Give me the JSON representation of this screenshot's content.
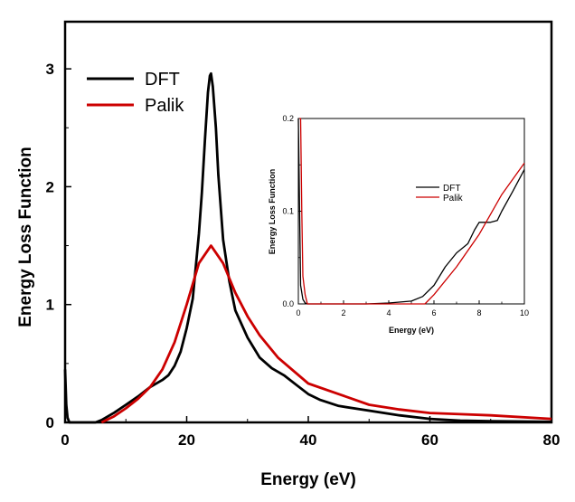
{
  "chart_data": [
    {
      "type": "line",
      "title": "",
      "xlabel": "Energy (eV)",
      "ylabel": "Energy Loss Function",
      "xlim": [
        0,
        80
      ],
      "ylim": [
        0,
        3.4
      ],
      "xticks": [
        0,
        20,
        40,
        60,
        80
      ],
      "yticks": [
        0,
        1,
        2,
        3
      ],
      "legend_position": "top-left",
      "series": [
        {
          "name": "DFT",
          "color": "#000000",
          "x": [
            0,
            0.2,
            0.4,
            0.7,
            1,
            5,
            6,
            8,
            10,
            12,
            14,
            16,
            17,
            18,
            19,
            20,
            21,
            22,
            22.5,
            23,
            23.5,
            23.8,
            24,
            24.3,
            24.8,
            25.2,
            26,
            27,
            28,
            30,
            32,
            34,
            36,
            38,
            40,
            42,
            45,
            50,
            55,
            60,
            65,
            70,
            80
          ],
          "y": [
            0.45,
            0.15,
            0.04,
            0.0,
            0.0,
            0.0,
            0.02,
            0.08,
            0.15,
            0.22,
            0.3,
            0.36,
            0.4,
            0.48,
            0.6,
            0.8,
            1.05,
            1.6,
            1.95,
            2.4,
            2.8,
            2.94,
            2.96,
            2.85,
            2.5,
            2.1,
            1.55,
            1.2,
            0.95,
            0.72,
            0.55,
            0.46,
            0.4,
            0.32,
            0.24,
            0.19,
            0.14,
            0.1,
            0.06,
            0.03,
            0.015,
            0.01,
            0.005
          ]
        },
        {
          "name": "Palik",
          "color": "#cc0000",
          "x": [
            6,
            8,
            10,
            12,
            14,
            16,
            18,
            20,
            22,
            24,
            26,
            28,
            30,
            32,
            35,
            40,
            45,
            50,
            55,
            60,
            65,
            70,
            80
          ],
          "y": [
            0.0,
            0.05,
            0.12,
            0.2,
            0.3,
            0.45,
            0.68,
            1.0,
            1.35,
            1.5,
            1.35,
            1.1,
            0.9,
            0.74,
            0.55,
            0.33,
            0.24,
            0.15,
            0.11,
            0.08,
            0.07,
            0.06,
            0.03
          ]
        }
      ]
    },
    {
      "type": "line",
      "title": "",
      "xlabel": "Energy (eV)",
      "ylabel": "Energy Loss Function",
      "xlim": [
        0,
        10
      ],
      "ylim": [
        0,
        0.2
      ],
      "xticks": [
        0,
        2,
        4,
        6,
        8,
        10
      ],
      "yticks": [
        0.0,
        0.1,
        0.2
      ],
      "ytick_labels": [
        "0.0",
        "0.1",
        "0.2"
      ],
      "legend_position": "center-right",
      "series": [
        {
          "name": "DFT",
          "color": "#000000",
          "x": [
            0,
            0.1,
            0.2,
            0.3,
            0.4,
            1,
            3,
            4,
            5,
            5.5,
            6,
            6.5,
            7,
            7.5,
            7.8,
            8,
            8.5,
            8.8,
            9,
            9.5,
            10
          ],
          "y": [
            0.2,
            0.02,
            0.005,
            0.001,
            0.0,
            0.0,
            0.0,
            0.001,
            0.003,
            0.008,
            0.02,
            0.04,
            0.055,
            0.065,
            0.08,
            0.088,
            0.088,
            0.09,
            0.1,
            0.122,
            0.145
          ]
        },
        {
          "name": "Palik",
          "color": "#cc0000",
          "x": [
            0.05,
            0.1,
            0.15,
            0.2,
            0.3,
            0.4,
            5.6,
            6,
            7,
            8,
            9,
            10
          ],
          "y": [
            0.2,
            0.2,
            0.1,
            0.03,
            0.01,
            0.0,
            0.0,
            0.01,
            0.04,
            0.075,
            0.118,
            0.152
          ]
        }
      ]
    }
  ]
}
